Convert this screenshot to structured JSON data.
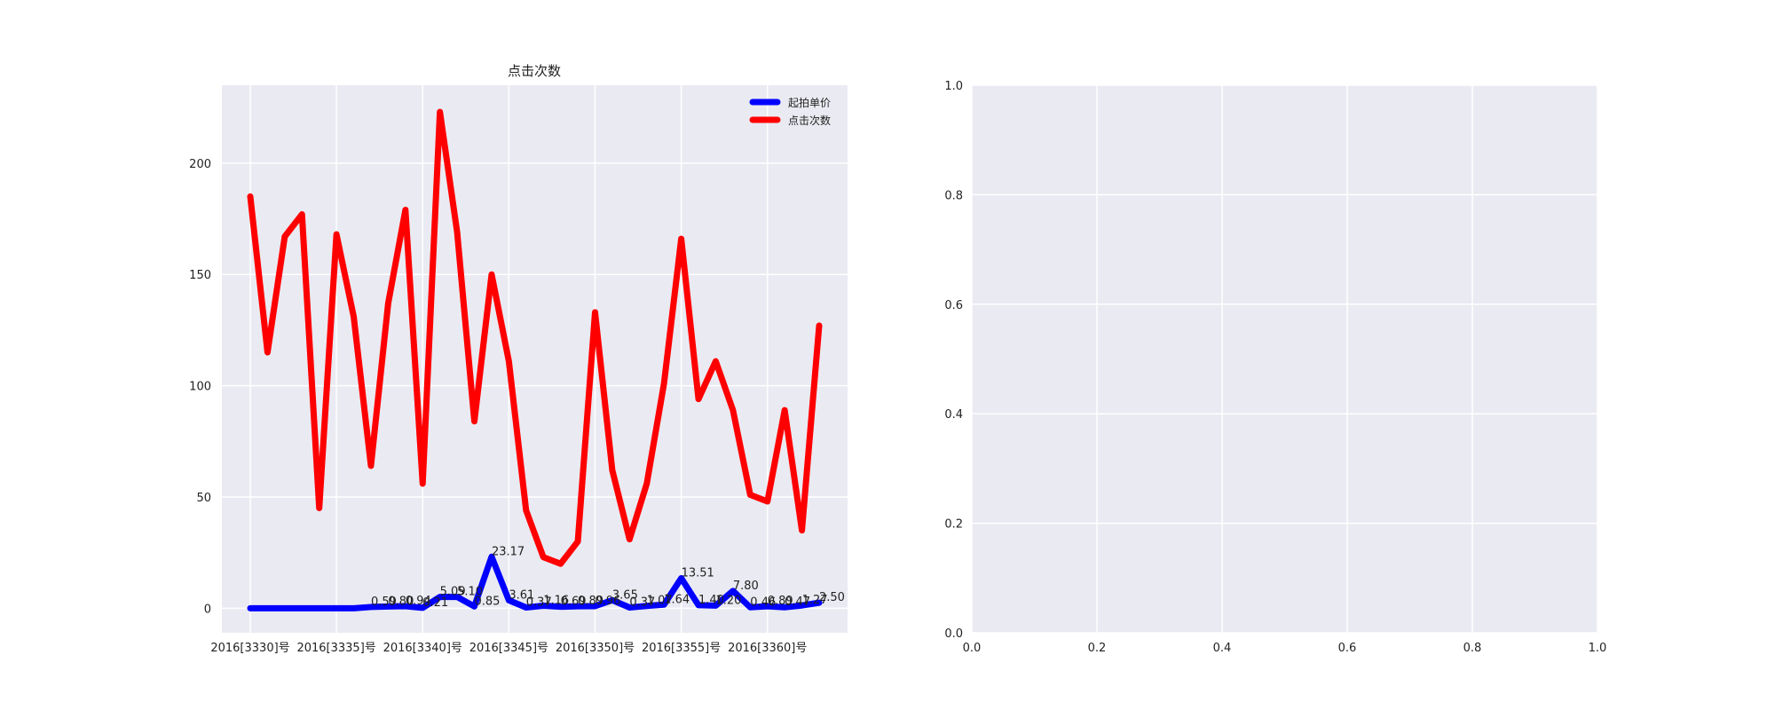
{
  "chart_data": [
    {
      "type": "line",
      "title": "点击次数",
      "xlabel": "",
      "ylabel": "",
      "ylim": [
        -11,
        235
      ],
      "yticks": [
        0,
        50,
        100,
        150,
        200
      ],
      "xtick_labels": [
        "2016[3330]号",
        "2016[3335]号",
        "2016[3340]号",
        "2016[3345]号",
        "2016[3350]号",
        "2016[3355]号",
        "2016[3360]号"
      ],
      "legend_position": "top-right",
      "grid": true,
      "x": [
        3330,
        3331,
        3332,
        3333,
        3334,
        3335,
        3336,
        3337,
        3338,
        3339,
        3340,
        3341,
        3342,
        3343,
        3344,
        3345,
        3346,
        3347,
        3348,
        3349,
        3350,
        3351,
        3352,
        3353,
        3354,
        3355,
        3356,
        3357,
        3358,
        3359,
        3360,
        3361,
        3362,
        3363
      ],
      "series": [
        {
          "name": "起拍单价",
          "color": "#0000ff",
          "values": [
            0,
            0,
            0,
            0,
            0,
            0,
            0,
            0.59,
            0.8,
            0.94,
            0.21,
            5.09,
            5.1,
            0.85,
            23.17,
            3.61,
            0.37,
            1.16,
            0.69,
            0.89,
            0.96,
            3.65,
            0.37,
            1.07,
            1.64,
            13.51,
            1.4,
            1.2,
            7.8,
            0.46,
            0.89,
            0.47,
            1.27,
            2.5
          ],
          "labels": [
            "",
            "",
            "",
            "",
            "",
            "",
            "",
            "0.59",
            "0.80",
            "0.94",
            "0.21",
            "5.09",
            "5.10",
            "0.85",
            "23.17",
            "3.61",
            "0.37",
            "1.16",
            "0.69",
            "0.89",
            "0.96",
            "3.65",
            "0.37",
            "1.07",
            "1.64",
            "13.51",
            "1.40",
            "1.20",
            "7.80",
            "0.46",
            "0.89",
            "0.47",
            "1.27",
            "2.50"
          ]
        },
        {
          "name": "点击次数",
          "color": "#ff0000",
          "values": [
            185,
            115,
            167,
            177,
            45,
            168,
            131,
            64,
            137,
            179,
            56,
            223,
            169,
            84,
            150,
            111,
            44,
            23,
            20,
            30,
            133,
            62,
            31,
            56,
            101,
            166,
            94,
            111,
            89,
            51,
            48,
            89,
            35,
            127
          ]
        }
      ]
    },
    {
      "type": "line",
      "title": "",
      "xlim": [
        0,
        1
      ],
      "ylim": [
        0,
        1
      ],
      "xticks": [
        "0.0",
        "0.2",
        "0.4",
        "0.6",
        "0.8",
        "1.0"
      ],
      "yticks": [
        "0.0",
        "0.2",
        "0.4",
        "0.6",
        "0.8",
        "1.0"
      ],
      "grid": true,
      "series": []
    }
  ]
}
